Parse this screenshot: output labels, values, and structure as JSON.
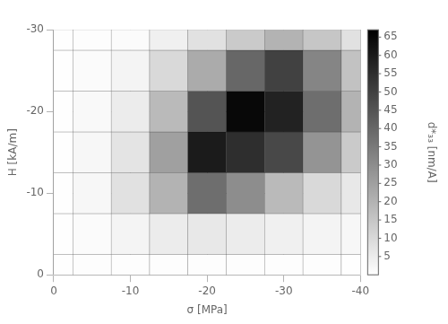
{
  "chart_data": {
    "type": "heatmap",
    "xlabel": "σ [MPa]",
    "ylabel": "H [kA/m]",
    "zlabel": "d*₃₃ [nm/A]",
    "x": [
      0,
      -5,
      -10,
      -15,
      -20,
      -25,
      -30,
      -35,
      -40
    ],
    "y": [
      0,
      -5,
      -10,
      -15,
      -20,
      -25,
      -30
    ],
    "values": [
      [
        0.3,
        0.3,
        0.3,
        0.3,
        0.3,
        0.3,
        0.3
      ],
      [
        0.5,
        1.0,
        2.0,
        2.0,
        1.5,
        1.0,
        0.5
      ],
      [
        0.5,
        3.0,
        8.0,
        7.0,
        5.0,
        3.0,
        1.0
      ],
      [
        0.5,
        5.0,
        20.0,
        25.0,
        18.0,
        10.0,
        4.0
      ],
      [
        0.5,
        6.0,
        38,
        60,
        45,
        22.0,
        8.0
      ],
      [
        0.5,
        5.0,
        30,
        55,
        65,
        40,
        14.0
      ],
      [
        0.5,
        4.0,
        18.0,
        48,
        58,
        50,
        20.0
      ],
      [
        0.5,
        3.0,
        10.0,
        28.0,
        38.0,
        32.0,
        15.0
      ],
      [
        0.3,
        2.0,
        6.0,
        14.0,
        20.0,
        16.0,
        8.0
      ]
    ],
    "xlim": [
      0,
      -40
    ],
    "xticks": [
      0,
      -10,
      -20,
      -30,
      -40
    ],
    "ylim": [
      0,
      -30
    ],
    "yticks": [
      0,
      -10,
      -20,
      -30
    ],
    "colorbar_range": [
      0,
      67
    ],
    "colorbar_ticks": [
      5,
      10,
      15,
      20,
      25,
      30,
      35,
      40,
      45,
      50,
      55,
      60,
      65
    ],
    "grid": true,
    "legend": false
  }
}
